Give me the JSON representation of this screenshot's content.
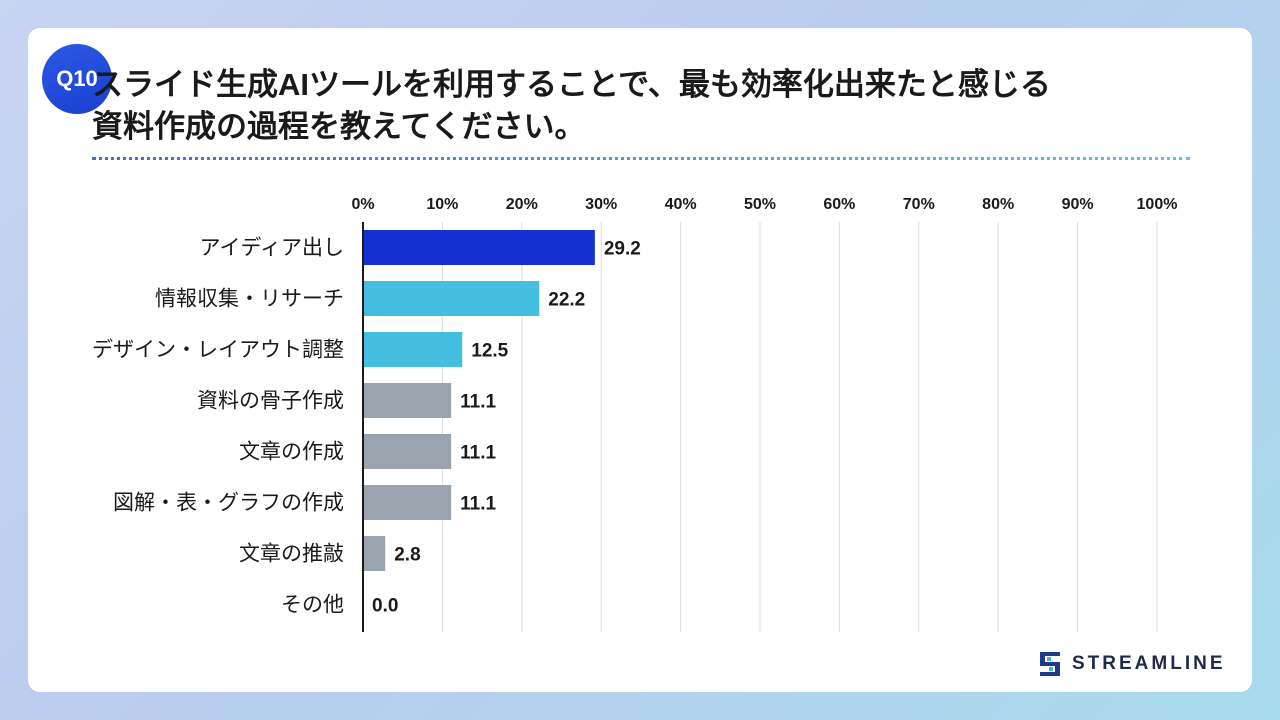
{
  "badge": "Q10",
  "title": {
    "line1": "スライド生成AIツールを利用することで、最も効率化出来たと感じる",
    "line2": "資料作成の過程を教えてください。"
  },
  "logo": {
    "text": "STREAMLINE"
  },
  "colors": {
    "top": "#1530d0",
    "second": "#44bfe0",
    "rest": "#9aa4ae",
    "grid": "#dddddd"
  },
  "chart_data": {
    "type": "bar",
    "orientation": "horizontal",
    "title": "スライド生成AIツールを利用することで、最も効率化出来たと感じる資料作成の過程を教えてください。",
    "xlabel": "",
    "ylabel": "",
    "xlim": [
      0,
      100
    ],
    "grid": true,
    "ticks": [
      "0%",
      "10%",
      "20%",
      "30%",
      "40%",
      "50%",
      "60%",
      "70%",
      "80%",
      "90%",
      "100%"
    ],
    "categories": [
      "アイディア出し",
      "情報収集・リサーチ",
      "デザイン・レイアウト調整",
      "資料の骨子作成",
      "文章の作成",
      "図解・表・グラフの作成",
      "文章の推敲",
      "その他"
    ],
    "values": [
      29.2,
      22.2,
      12.5,
      11.1,
      11.1,
      11.1,
      2.8,
      0.0
    ],
    "labels": [
      "29.2",
      "22.2",
      "12.5",
      "11.1",
      "11.1",
      "11.1",
      "2.8",
      "0.0"
    ],
    "color_groups": [
      "top",
      "second",
      "second",
      "rest",
      "rest",
      "rest",
      "rest",
      "rest"
    ]
  }
}
